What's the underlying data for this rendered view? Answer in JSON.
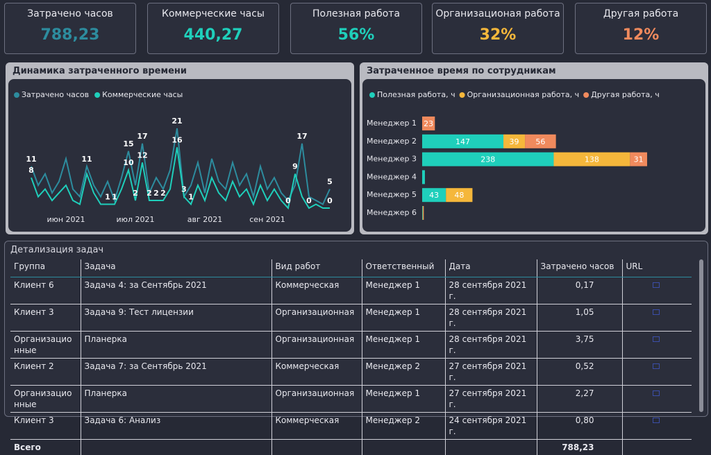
{
  "kpis": [
    {
      "label": "Затрачено часов",
      "value": "788,23",
      "color": "#2d8c9e"
    },
    {
      "label": "Коммерческие часы",
      "value": "440,27",
      "color": "#1fcfbb"
    },
    {
      "label": "Полезная работа",
      "value": "56%",
      "color": "#1fcfbb"
    },
    {
      "label": "Организационая работа",
      "value": "32%",
      "color": "#f5b73b"
    },
    {
      "label": "Другая работа",
      "value": "12%",
      "color": "#f08a5d"
    }
  ],
  "line_chart": {
    "type": "line",
    "title": "Динамика затраченного времени",
    "xticks": [
      {
        "value": 5,
        "label": "июн 2021"
      },
      {
        "value": 15,
        "label": "июл 2021"
      },
      {
        "value": 25,
        "label": "авг 2021"
      },
      {
        "value": 34,
        "label": "сен 2021"
      }
    ],
    "series": [
      {
        "name": "Затрачено часов",
        "color": "#2d8c9e",
        "values": [
          11,
          6,
          9,
          4,
          7,
          13,
          5,
          3,
          11,
          6,
          3,
          7,
          2,
          8,
          15,
          6,
          17,
          4,
          8,
          5,
          10,
          21,
          3,
          6,
          12,
          4,
          13,
          7,
          5,
          12,
          6,
          9,
          3,
          11,
          5,
          8,
          4,
          2,
          6,
          17,
          3,
          2,
          1,
          5
        ],
        "value_labels": [
          11,
          null,
          null,
          null,
          null,
          null,
          null,
          null,
          11,
          null,
          null,
          null,
          null,
          null,
          15,
          null,
          17,
          null,
          null,
          null,
          null,
          21,
          null,
          null,
          null,
          null,
          null,
          null,
          null,
          null,
          null,
          null,
          null,
          null,
          null,
          null,
          null,
          null,
          null,
          17,
          null,
          null,
          null,
          5
        ]
      },
      {
        "name": "Коммерческие часы",
        "color": "#1fcfbb",
        "values": [
          8,
          3,
          5,
          2,
          4,
          6,
          2,
          1,
          9,
          4,
          1,
          1,
          1,
          5,
          10,
          2,
          12,
          2,
          2,
          2,
          5,
          16,
          3,
          1,
          6,
          2,
          8,
          4,
          2,
          7,
          3,
          5,
          1,
          6,
          2,
          5,
          2,
          0,
          9,
          3,
          0,
          1,
          0,
          0
        ],
        "value_labels": [
          8,
          null,
          null,
          null,
          null,
          null,
          null,
          null,
          null,
          null,
          null,
          1,
          1,
          null,
          10,
          2,
          12,
          2,
          2,
          2,
          null,
          16,
          3,
          1,
          null,
          null,
          null,
          null,
          null,
          null,
          null,
          null,
          null,
          null,
          null,
          null,
          null,
          0,
          9,
          null,
          0,
          null,
          null,
          0
        ]
      }
    ]
  },
  "bar_chart": {
    "type": "stacked-bar-horizontal",
    "title": "Затраченное время по сотрудникам",
    "categories": [
      "Менеджер 1",
      "Менеджер 2",
      "Менеджер 3",
      "Менеджер 4",
      "Менеджер 5",
      "Менеджер 6"
    ],
    "series": [
      {
        "name": "Полезная работа, ч",
        "color": "#1fcfbb",
        "values": [
          0,
          147,
          238,
          5,
          43,
          1
        ],
        "value_labels": [
          null,
          147,
          238,
          null,
          43,
          null
        ]
      },
      {
        "name": "Организационная работа, ч",
        "color": "#f5b73b",
        "values": [
          0,
          39,
          138,
          0,
          48,
          1
        ],
        "value_labels": [
          null,
          39,
          138,
          null,
          48,
          null
        ]
      },
      {
        "name": "Другая работа, ч",
        "color": "#f08a5d",
        "values": [
          23,
          56,
          31,
          0,
          0,
          1
        ],
        "value_labels": [
          23,
          56,
          31,
          null,
          null,
          null
        ]
      }
    ]
  },
  "table": {
    "title": "Детализация задач",
    "columns": [
      "Группа",
      "Задача",
      "Вид работ",
      "Ответственный",
      "Дата",
      "Затрачено часов",
      "URL"
    ],
    "rows": [
      [
        "Клиент 6",
        "Задача 4: за Сентябрь 2021",
        "Коммерческая",
        "Менеджер 1",
        "28 сентября 2021 г.",
        "0,17"
      ],
      [
        "Клиент 3",
        "Задача 9: Тест лицензии",
        "Организационная",
        "Менеджер 1",
        "28 сентября 2021 г.",
        "1,05"
      ],
      [
        "Организационные",
        "Планерка",
        "Организационная",
        "Менеджер 1",
        "28 сентября 2021 г.",
        "3,75"
      ],
      [
        "Клиент 2",
        "Задача 7: за Сентябрь 2021",
        "Коммерческая",
        "Менеджер 2",
        "27 сентября 2021 г.",
        "0,52"
      ],
      [
        "Организационные",
        "Планерка",
        "Организационная",
        "Менеджер 1",
        "27 сентября 2021 г.",
        "2,27"
      ],
      [
        "Клиент 3",
        "Задача 6: Анализ",
        "Коммерческая",
        "Менеджер 2",
        "24 сентября 2021 г.",
        "0,80"
      ]
    ],
    "total": {
      "label": "Всего",
      "value": "788,23"
    }
  }
}
